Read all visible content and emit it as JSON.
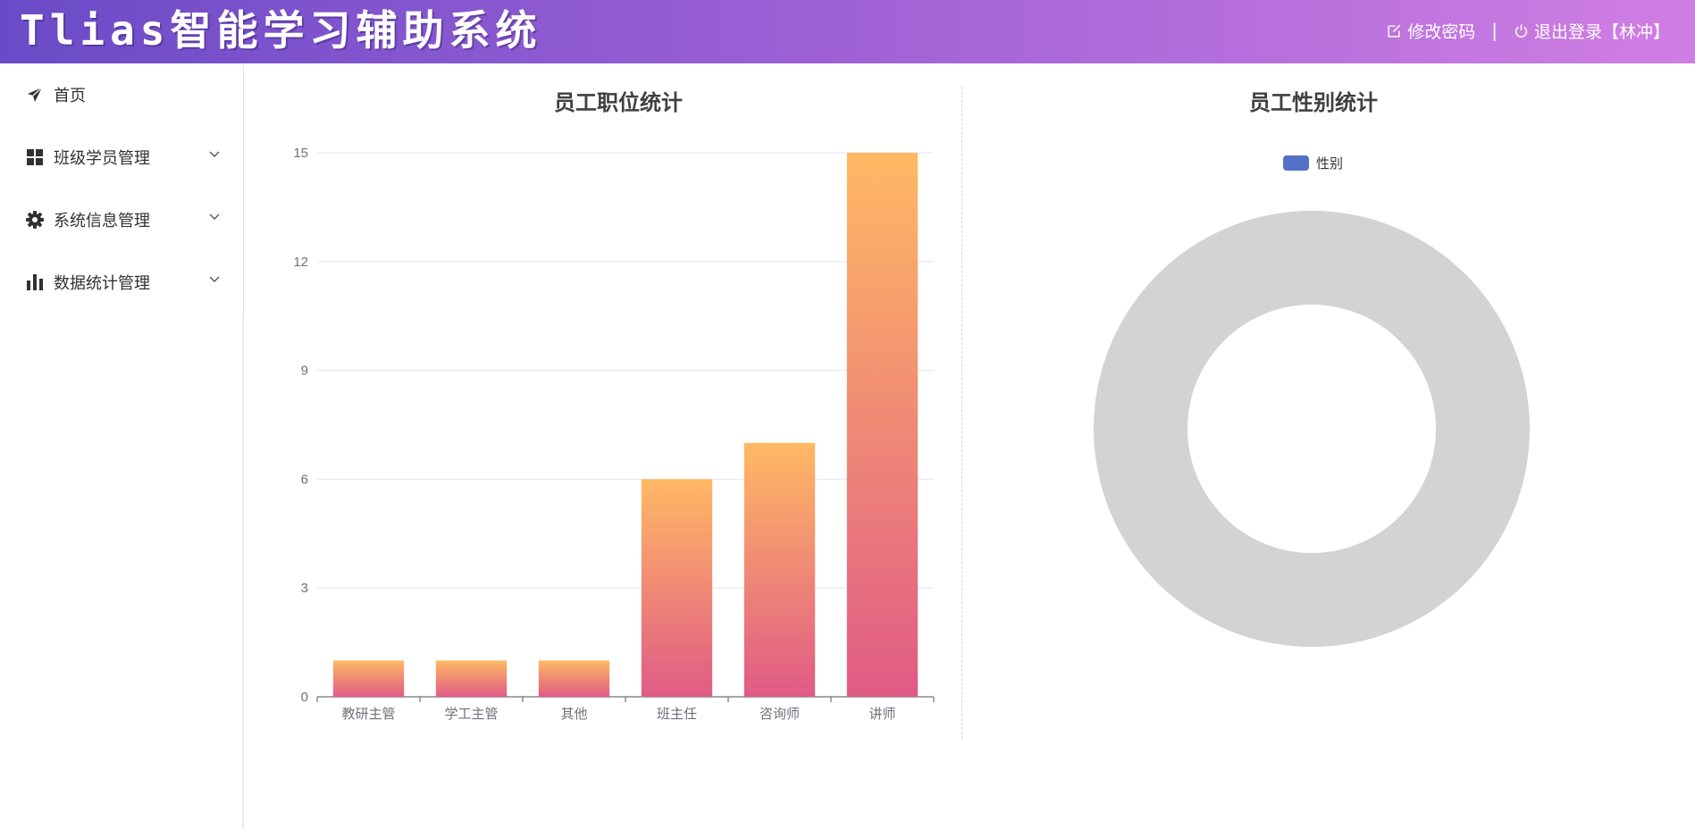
{
  "header": {
    "title": "Tlias智能学习辅助系统",
    "change_password": "修改密码",
    "separator": "|",
    "logout": "退出登录【林冲】"
  },
  "sidebar": {
    "items": [
      {
        "label": "首页",
        "icon": "paper-plane-icon",
        "has_submenu": false
      },
      {
        "label": "班级学员管理",
        "icon": "grid-icon",
        "has_submenu": true
      },
      {
        "label": "系统信息管理",
        "icon": "gear-icon",
        "has_submenu": true
      },
      {
        "label": "数据统计管理",
        "icon": "bar-chart-icon",
        "has_submenu": true
      }
    ]
  },
  "colors": {
    "bar_top": "#ffb964",
    "bar_bottom": "#e05b86",
    "donut_empty": "#d3d3d3",
    "legend_swatch": "#5470c6",
    "axis": "#6e7079",
    "grid": "#e0e6f1"
  },
  "chart_data": [
    {
      "type": "bar",
      "title": "员工职位统计",
      "categories": [
        "教研主管",
        "学工主管",
        "其他",
        "班主任",
        "咨询师",
        "讲师"
      ],
      "values": [
        1,
        1,
        1,
        6,
        7,
        15
      ],
      "xlabel": "",
      "ylabel": "",
      "ylim": [
        0,
        15
      ],
      "yticks": [
        0,
        3,
        6,
        9,
        12,
        15
      ],
      "grid": true
    },
    {
      "type": "pie",
      "style": "donut",
      "title": "员工性别统计",
      "legend": [
        "性别"
      ],
      "legend_position": "top-center",
      "slices": []
    }
  ]
}
